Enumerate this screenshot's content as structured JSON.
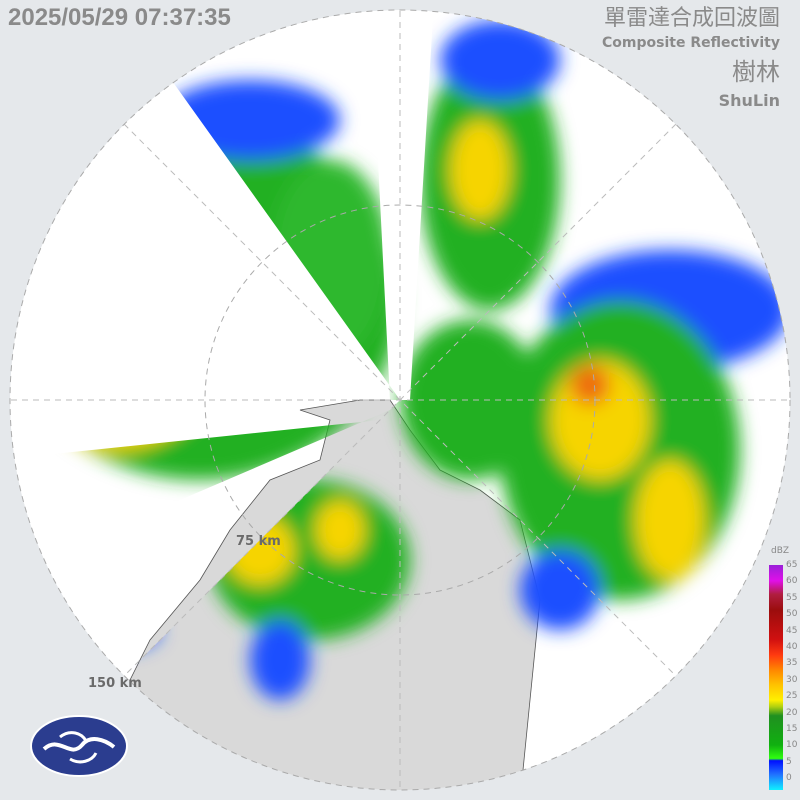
{
  "header": {
    "timestamp": "2025/05/29 07:37:35",
    "title_zh": "單雷達合成回波圖",
    "title_en": "Composite Reflectivity",
    "station_zh": "樹林",
    "station_en": "ShuLin"
  },
  "map": {
    "range_rings": [
      "75 km",
      "150 km"
    ]
  },
  "legend": {
    "unit": "dBZ",
    "ticks": [
      "65",
      "60",
      "55",
      "50",
      "45",
      "40",
      "35",
      "30",
      "25",
      "20",
      "15",
      "10",
      "5",
      "0"
    ]
  },
  "colors": {
    "background": "#e5e8eb",
    "coverage": "#ffffff",
    "land": "#d9d9d9",
    "weak": "#1f4fff",
    "moderate": "#22b022",
    "strong": "#f6d400",
    "heavy": "#ee6a10"
  },
  "logo": {
    "name": "cwa-logo"
  }
}
